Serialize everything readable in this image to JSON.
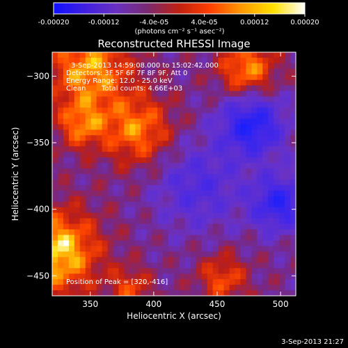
{
  "window": {
    "background": "#000000"
  },
  "colorbar": {
    "ticks": [
      "-0.00020",
      "-0.00012",
      "-4.0e-05",
      "4.0e-05",
      "0.00012",
      "0.00020"
    ],
    "unit": "(photons cm⁻² s⁻¹ asec⁻²)",
    "colormap": [
      "#1010ff",
      "#4020e0",
      "#6a30c0",
      "#7a2a70",
      "#c02010",
      "#ff4000",
      "#ff9a00",
      "#ffe000",
      "#ffffff"
    ]
  },
  "image_info": {
    "time_range": "3-Sep-2013 14:59:08.000 to 15:02:42.000",
    "detectors": "Detectors: 3F 5F 6F 7F 8F 9F, Att 0",
    "energy": "Energy Range: 12.0 - 25.0 keV",
    "clean": "Clean",
    "total_counts": "Total counts: 4.66E+03",
    "peak": "Position of Peak = [320,-416]"
  },
  "footer": {
    "timestamp": "3-Sep-2013 21:27"
  },
  "chart_data": {
    "type": "heatmap",
    "title": "Reconstructed RHESSI Image",
    "xlabel": "Heliocentric X (arcsec)",
    "ylabel": "Heliocentric Y (arcsec)",
    "xlim": [
      320,
      512
    ],
    "ylim": [
      -465,
      -282
    ],
    "x_ticks": [
      350,
      400,
      450,
      500
    ],
    "y_ticks": [
      -300,
      -350,
      -400,
      -450
    ],
    "x_tick_labels": [
      "350",
      "400",
      "450",
      "500"
    ],
    "y_tick_labels": [
      "−300",
      "−350",
      "−400",
      "−450"
    ],
    "value_range": [
      -0.0002,
      0.0002
    ],
    "peak_position": [
      320,
      -416
    ]
  }
}
